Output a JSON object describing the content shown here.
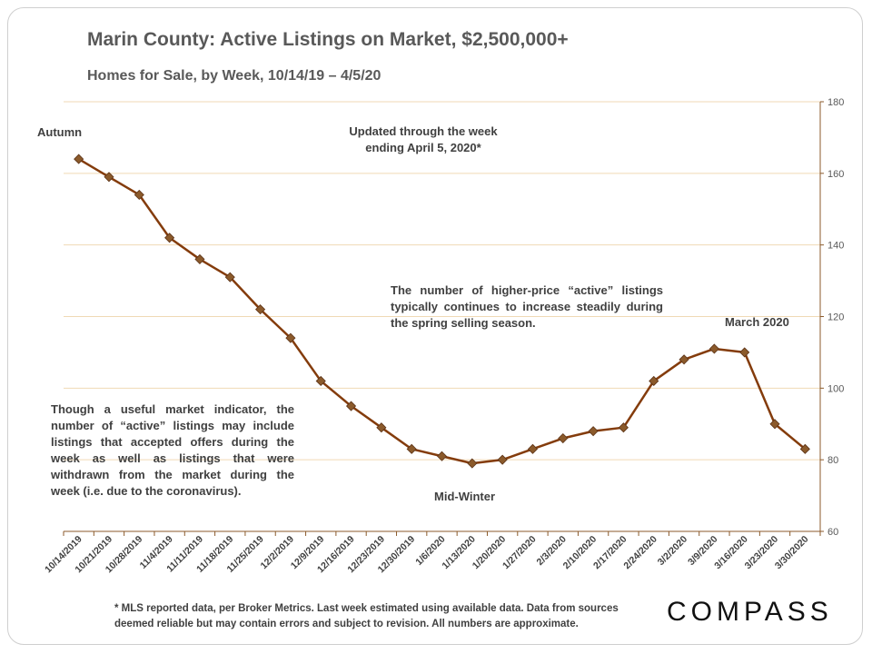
{
  "title": "Marin County: Active Listings on Market,",
  "title_suffix": "$2,500,000+",
  "subtitle": "Homes for Sale, by Week, 10/14/19 – 4/5/20",
  "annotations": {
    "autumn": "Autumn",
    "updated": "Updated through the week ending April 5, 2020*",
    "spring": "The number of higher-price “active” listings typically continues to increase steadily during the spring selling season.",
    "march": "March 2020",
    "indicator": "Though a useful market indicator, the number of “active” listings may include listings that accepted offers during the week as well as listings that were withdrawn from the market during the week (i.e. due to the coronavirus).",
    "midwinter": "Mid-Winter"
  },
  "footnote": "* MLS reported data, per Broker Metrics. Last week estimated using available data. Data from sources deemed reliable but may contain errors and subject to revision. All numbers are approximate.",
  "logo": "COMPASS",
  "colors": {
    "line": "#843c0c",
    "marker": "#8b5a2b",
    "grid": "#f0d9b5",
    "axis_text": "#595959"
  },
  "chart_data": {
    "type": "line",
    "categories": [
      "10/14/2019",
      "10/21/2019",
      "10/28/2019",
      "11/4/2019",
      "11/11/2019",
      "11/18/2019",
      "11/25/2019",
      "12/2/2019",
      "12/9/2019",
      "12/16/2019",
      "12/23/2019",
      "12/30/2019",
      "1/6/2020",
      "1/13/2020",
      "1/20/2020",
      "1/27/2020",
      "2/3/2020",
      "2/10/2020",
      "2/17/2020",
      "2/24/2020",
      "3/2/2020",
      "3/9/2020",
      "3/16/2020",
      "3/23/2020",
      "3/30/2020"
    ],
    "values": [
      164,
      159,
      154,
      142,
      136,
      131,
      122,
      114,
      102,
      95,
      89,
      83,
      81,
      79,
      80,
      83,
      86,
      88,
      89,
      102,
      108,
      111,
      110,
      90,
      83
    ],
    "ylim": [
      60,
      180
    ],
    "yticks": [
      60,
      80,
      100,
      120,
      140,
      160,
      180
    ],
    "y_axis_side": "right",
    "grid": true,
    "legend": "none"
  }
}
